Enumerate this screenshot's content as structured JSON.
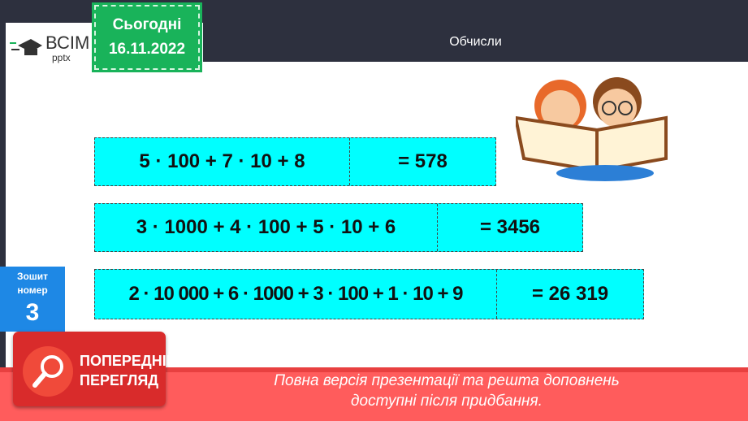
{
  "header": {
    "logo_text": "ВСІМ",
    "logo_sub": "pptx",
    "date_label": "Сьогодні",
    "date": "16.11.2022",
    "title": "Обчисли"
  },
  "rows": [
    {
      "expression": "5 · 100 + 7 · 10 + 8",
      "result": "= 578"
    },
    {
      "expression": "3 · 1000 + 4 · 100 + 5 · 10 + 6",
      "result": "= 3456"
    },
    {
      "expression": "2 · 10 000 + 6 · 1000 + 3 · 100 + 1 · 10 + 9",
      "result": "= 26 319"
    }
  ],
  "notebook": {
    "label1": "Зошит",
    "label2": "номер",
    "number": "3"
  },
  "preview": {
    "line1": "ПОПЕРЕДНІЙ",
    "line2": "ПЕРЕГЛЯД",
    "icon": "magnifier-icon"
  },
  "banner": {
    "line1": "Повна версія презентації та решта доповнень",
    "line2": "доступні після придбання."
  },
  "colors": {
    "accent_cyan": "#00ffff",
    "date_green": "#19b35a",
    "notebook_blue": "#1e88e5",
    "banner_red": "#ff5c5c"
  }
}
